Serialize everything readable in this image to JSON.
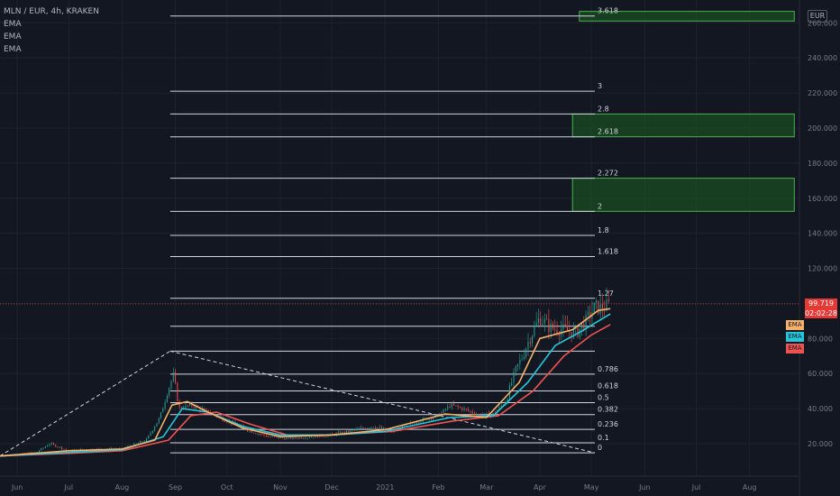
{
  "header": {
    "symbol": "MLN / EUR, 4h, KRAKEN",
    "indicators": [
      "EMA",
      "EMA",
      "EMA"
    ]
  },
  "currency_label": "EUR",
  "last_price": {
    "value": "99.719",
    "countdown": "02:02:28"
  },
  "ema_tags": [
    {
      "label": "EMA",
      "color": "#f6b26b"
    },
    {
      "label": "EMA",
      "color": "#26c6da"
    },
    {
      "label": "EMA",
      "color": "#ef5350"
    }
  ],
  "colors": {
    "background": "#131722",
    "grid": "#1e222d",
    "axis_text": "#787b86",
    "candle_up": "#26a69a",
    "candle_down": "#ef5350",
    "fib_line": "#d1d4dc",
    "target_box_fill": "#1b5e20",
    "target_box_stroke": "#4caf50",
    "price_line": "#e53935",
    "trend_line": "#d1d4dc"
  },
  "chart_data": {
    "type": "candlestick-with-fibonacci",
    "x_axis_labels": [
      "Jun",
      "Jul",
      "Aug",
      "Sep",
      "Oct",
      "Nov",
      "Dec",
      "2021",
      "Feb",
      "Mar",
      "Apr",
      "May",
      "Jun",
      "Jul",
      "Aug"
    ],
    "x_axis_dates": [
      "2020-06-01",
      "2020-07-01",
      "2020-08-01",
      "2020-09-01",
      "2020-10-01",
      "2020-11-01",
      "2020-12-01",
      "2021-01-01",
      "2021-02-01",
      "2021-03-01",
      "2021-04-01",
      "2021-05-01",
      "2021-06-01",
      "2021-07-01",
      "2021-08-01"
    ],
    "x_range": [
      "2020-05-22",
      "2021-08-30"
    ],
    "y_axis_labels": [
      "20.000",
      "40.000",
      "60.000",
      "80.000",
      "100.000",
      "120.000",
      "140.000",
      "160.000",
      "180.000",
      "200.000",
      "220.000",
      "240.000",
      "260.000"
    ],
    "y_axis_ticks": [
      20,
      40,
      60,
      80,
      100,
      120,
      140,
      160,
      180,
      200,
      220,
      240,
      260
    ],
    "ylim": [
      1.5,
      273
    ],
    "series_points": [
      {
        "t": "2020-05-22",
        "v": 13
      },
      {
        "t": "2020-06-12",
        "v": 15
      },
      {
        "t": "2020-06-20",
        "v": 20
      },
      {
        "t": "2020-07-01",
        "v": 16
      },
      {
        "t": "2020-07-15",
        "v": 17
      },
      {
        "t": "2020-08-01",
        "v": 17
      },
      {
        "t": "2020-08-15",
        "v": 22
      },
      {
        "t": "2020-08-23",
        "v": 35
      },
      {
        "t": "2020-08-27",
        "v": 48
      },
      {
        "t": "2020-08-31",
        "v": 60
      },
      {
        "t": "2020-09-03",
        "v": 40
      },
      {
        "t": "2020-09-10",
        "v": 42
      },
      {
        "t": "2020-09-20",
        "v": 38
      },
      {
        "t": "2020-10-01",
        "v": 33
      },
      {
        "t": "2020-10-15",
        "v": 27
      },
      {
        "t": "2020-10-25",
        "v": 24
      },
      {
        "t": "2020-11-05",
        "v": 23
      },
      {
        "t": "2020-11-20",
        "v": 24
      },
      {
        "t": "2020-12-01",
        "v": 25
      },
      {
        "t": "2020-12-15",
        "v": 28
      },
      {
        "t": "2020-12-25",
        "v": 30
      },
      {
        "t": "2021-01-05",
        "v": 27
      },
      {
        "t": "2021-01-20",
        "v": 33
      },
      {
        "t": "2021-02-01",
        "v": 36
      },
      {
        "t": "2021-02-08",
        "v": 42
      },
      {
        "t": "2021-02-15",
        "v": 40
      },
      {
        "t": "2021-02-25",
        "v": 36
      },
      {
        "t": "2021-03-05",
        "v": 37
      },
      {
        "t": "2021-03-12",
        "v": 44
      },
      {
        "t": "2021-03-18",
        "v": 62
      },
      {
        "t": "2021-03-22",
        "v": 70
      },
      {
        "t": "2021-03-26",
        "v": 80
      },
      {
        "t": "2021-04-01",
        "v": 92
      },
      {
        "t": "2021-04-07",
        "v": 86
      },
      {
        "t": "2021-04-15",
        "v": 85
      },
      {
        "t": "2021-04-22",
        "v": 83
      },
      {
        "t": "2021-04-28",
        "v": 90
      },
      {
        "t": "2021-05-03",
        "v": 98
      },
      {
        "t": "2021-05-07",
        "v": 97
      },
      {
        "t": "2021-05-12",
        "v": 99.7
      }
    ],
    "ema_fast": [
      {
        "t": "2020-05-22",
        "v": 13
      },
      {
        "t": "2020-07-01",
        "v": 16
      },
      {
        "t": "2020-08-01",
        "v": 17
      },
      {
        "t": "2020-08-20",
        "v": 22
      },
      {
        "t": "2020-08-30",
        "v": 42
      },
      {
        "t": "2020-09-08",
        "v": 44
      },
      {
        "t": "2020-09-20",
        "v": 38
      },
      {
        "t": "2020-10-10",
        "v": 29
      },
      {
        "t": "2020-11-01",
        "v": 24
      },
      {
        "t": "2020-12-01",
        "v": 25
      },
      {
        "t": "2021-01-01",
        "v": 28
      },
      {
        "t": "2021-02-05",
        "v": 37
      },
      {
        "t": "2021-03-01",
        "v": 35
      },
      {
        "t": "2021-03-20",
        "v": 55
      },
      {
        "t": "2021-04-01",
        "v": 80
      },
      {
        "t": "2021-04-20",
        "v": 85
      },
      {
        "t": "2021-05-05",
        "v": 96
      },
      {
        "t": "2021-05-12",
        "v": 97
      }
    ],
    "ema_mid": [
      {
        "t": "2020-05-22",
        "v": 13
      },
      {
        "t": "2020-07-01",
        "v": 15
      },
      {
        "t": "2020-08-01",
        "v": 16.5
      },
      {
        "t": "2020-08-25",
        "v": 24
      },
      {
        "t": "2020-09-05",
        "v": 40
      },
      {
        "t": "2020-09-20",
        "v": 38
      },
      {
        "t": "2020-10-10",
        "v": 30
      },
      {
        "t": "2020-11-01",
        "v": 25
      },
      {
        "t": "2020-12-01",
        "v": 25
      },
      {
        "t": "2021-01-01",
        "v": 27
      },
      {
        "t": "2021-02-08",
        "v": 35
      },
      {
        "t": "2021-03-05",
        "v": 36
      },
      {
        "t": "2021-03-25",
        "v": 55
      },
      {
        "t": "2021-04-10",
        "v": 76
      },
      {
        "t": "2021-04-25",
        "v": 84
      },
      {
        "t": "2021-05-12",
        "v": 94
      }
    ],
    "ema_slow": [
      {
        "t": "2020-05-22",
        "v": 13
      },
      {
        "t": "2020-07-01",
        "v": 14.5
      },
      {
        "t": "2020-08-01",
        "v": 16
      },
      {
        "t": "2020-08-28",
        "v": 22
      },
      {
        "t": "2020-09-10",
        "v": 36
      },
      {
        "t": "2020-09-25",
        "v": 38
      },
      {
        "t": "2020-10-15",
        "v": 31
      },
      {
        "t": "2020-11-05",
        "v": 25
      },
      {
        "t": "2020-12-01",
        "v": 25
      },
      {
        "t": "2021-01-05",
        "v": 27
      },
      {
        "t": "2021-02-10",
        "v": 33
      },
      {
        "t": "2021-03-08",
        "v": 36
      },
      {
        "t": "2021-03-28",
        "v": 50
      },
      {
        "t": "2021-04-15",
        "v": 70
      },
      {
        "t": "2021-05-01",
        "v": 82
      },
      {
        "t": "2021-05-12",
        "v": 88
      }
    ],
    "fib_levels": [
      {
        "label": "0",
        "value": 14.8
      },
      {
        "label": "0.1",
        "value": 20.5
      },
      {
        "label": "0.236",
        "value": 28.2
      },
      {
        "label": "0.382",
        "value": 36.6
      },
      {
        "label": "0.5",
        "value": 43.4
      },
      {
        "label": "0.618",
        "value": 50.1
      },
      {
        "label": "0.786",
        "value": 59.7
      },
      {
        "label": "",
        "value": 72.8
      },
      {
        "label": "",
        "value": 87.0
      },
      {
        "label": "1.27",
        "value": 102.9
      },
      {
        "label": "1.618",
        "value": 126.7
      },
      {
        "label": "1.8",
        "value": 138.8
      },
      {
        "label": "2",
        "value": 152.5
      },
      {
        "label": "2.272",
        "value": 171.4
      },
      {
        "label": "2.618",
        "value": 195.0
      },
      {
        "label": "2.8",
        "value": 208.0
      },
      {
        "label": "3",
        "value": 221.0
      },
      {
        "label": "3.618",
        "value": 263.9
      }
    ],
    "fib_range": [
      "2020-08-29",
      "2021-05-03"
    ],
    "target_boxes": [
      {
        "from": "2021-04-20",
        "to": "2021-08-27",
        "low": 152.5,
        "high": 171.4
      },
      {
        "from": "2021-04-20",
        "to": "2021-08-27",
        "low": 195.0,
        "high": 208.0
      },
      {
        "from": "2021-04-24",
        "to": "2021-08-27",
        "low": 261.0,
        "high": 266.5
      }
    ],
    "trend_lines": [
      {
        "from": {
          "t": "2020-05-22",
          "v": 13
        },
        "to": {
          "t": "2020-08-29",
          "v": 72.8
        }
      },
      {
        "from": {
          "t": "2020-08-29",
          "v": 72.8
        },
        "to": {
          "t": "2021-05-03",
          "v": 14.8
        }
      }
    ],
    "last_price": 99.719
  }
}
